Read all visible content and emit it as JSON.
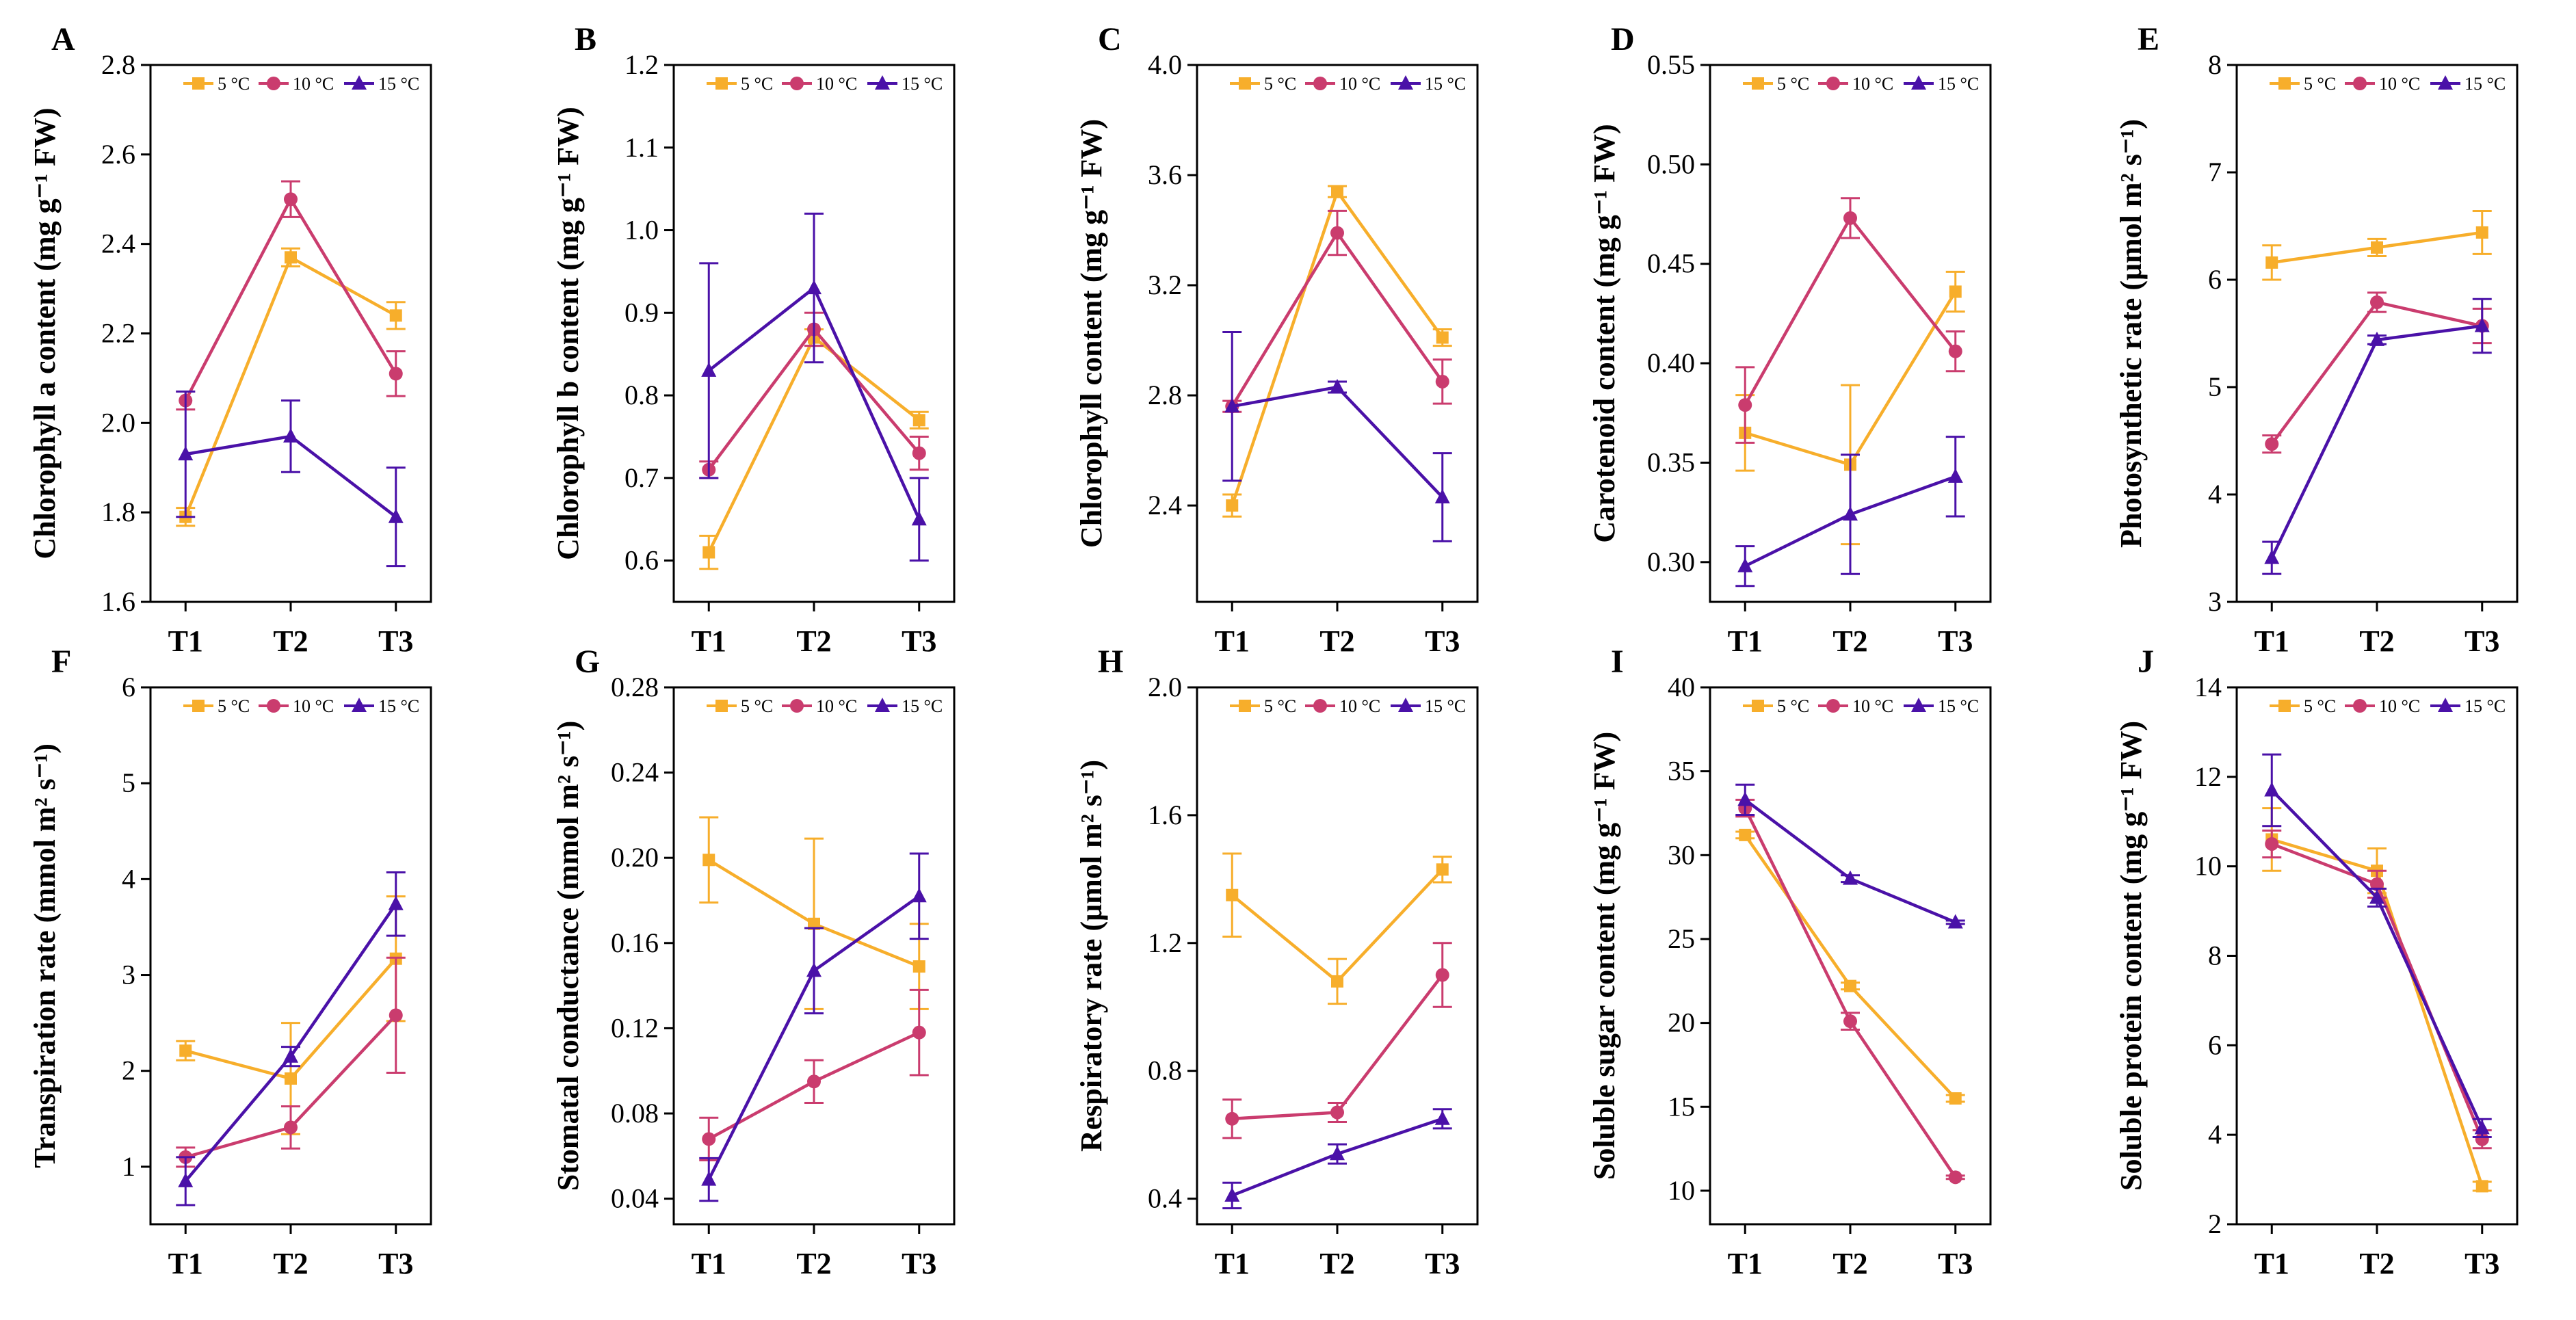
{
  "figure": {
    "colors": {
      "5C": "#F7AE2B",
      "10C": "#CA3C6E",
      "15C": "#4A11A8"
    },
    "legend": [
      "5 °C",
      "10 °C",
      "15 °C"
    ],
    "categories": [
      "T1",
      "T2",
      "T3"
    ]
  },
  "chart_data": [
    {
      "type": "line",
      "panel": "A",
      "ylabel": "Chlorophyll a content (mg g⁻¹ FW)",
      "ylim": [
        1.6,
        2.8
      ],
      "yticks": [
        1.6,
        1.8,
        2.0,
        2.2,
        2.4,
        2.6,
        2.8
      ],
      "ytick_labels": [
        "1.6",
        "1.8",
        "2.0",
        "2.2",
        "2.4",
        "2.6",
        "2.8"
      ],
      "categories": [
        "T1",
        "T2",
        "T3"
      ],
      "series": [
        {
          "name": "5 °C",
          "values": [
            1.79,
            2.37,
            2.24
          ],
          "errors": [
            0.02,
            0.02,
            0.03
          ]
        },
        {
          "name": "10 °C",
          "values": [
            2.05,
            2.5,
            2.11
          ],
          "errors": [
            0.02,
            0.04,
            0.05
          ]
        },
        {
          "name": "15 °C",
          "values": [
            1.93,
            1.97,
            1.79
          ],
          "errors": [
            0.14,
            0.08,
            0.11
          ]
        }
      ]
    },
    {
      "type": "line",
      "panel": "B",
      "ylabel": "Chlorophyll b content (mg g⁻¹ FW)",
      "ylim": [
        0.55,
        1.2
      ],
      "yticks": [
        0.6,
        0.7,
        0.8,
        0.9,
        1.0,
        1.1,
        1.2
      ],
      "ytick_labels": [
        "0.6",
        "0.7",
        "0.8",
        "0.9",
        "1.0",
        "1.1",
        "1.2"
      ],
      "categories": [
        "T1",
        "T2",
        "T3"
      ],
      "series": [
        {
          "name": "5 °C",
          "values": [
            0.61,
            0.87,
            0.77
          ],
          "errors": [
            0.02,
            0.01,
            0.01
          ]
        },
        {
          "name": "10 °C",
          "values": [
            0.71,
            0.88,
            0.73
          ],
          "errors": [
            0.01,
            0.02,
            0.02
          ]
        },
        {
          "name": "15 °C",
          "values": [
            0.83,
            0.93,
            0.65
          ],
          "errors": [
            0.13,
            0.09,
            0.05
          ]
        }
      ]
    },
    {
      "type": "line",
      "panel": "C",
      "ylabel": "Chlorophyll content (mg g⁻¹ FW)",
      "ylim": [
        2.05,
        4.0
      ],
      "yticks": [
        2.4,
        2.8,
        3.2,
        3.6,
        4.0
      ],
      "ytick_labels": [
        "2.4",
        "2.8",
        "3.2",
        "3.6",
        "4.0"
      ],
      "categories": [
        "T1",
        "T2",
        "T3"
      ],
      "series": [
        {
          "name": "5 °C",
          "values": [
            2.4,
            3.54,
            3.01
          ],
          "errors": [
            0.04,
            0.02,
            0.03
          ]
        },
        {
          "name": "10 °C",
          "values": [
            2.76,
            3.39,
            2.85
          ],
          "errors": [
            0.02,
            0.08,
            0.08
          ]
        },
        {
          "name": "15 °C",
          "values": [
            2.76,
            2.83,
            2.43
          ],
          "errors": [
            0.27,
            0.02,
            0.16
          ]
        }
      ]
    },
    {
      "type": "line",
      "panel": "D",
      "ylabel": "Carotenoid content (mg g⁻¹ FW)",
      "ylim": [
        0.28,
        0.55
      ],
      "yticks": [
        0.3,
        0.35,
        0.4,
        0.45,
        0.5,
        0.55
      ],
      "ytick_labels": [
        "0.30",
        "0.35",
        "0.40",
        "0.45",
        "0.50",
        "0.55"
      ],
      "categories": [
        "T1",
        "T2",
        "T3"
      ],
      "series": [
        {
          "name": "5 °C",
          "values": [
            0.365,
            0.349,
            0.436
          ],
          "errors": [
            0.019,
            0.04,
            0.01
          ]
        },
        {
          "name": "10 °C",
          "values": [
            0.379,
            0.473,
            0.406
          ],
          "errors": [
            0.019,
            0.01,
            0.01
          ]
        },
        {
          "name": "15 °C",
          "values": [
            0.298,
            0.324,
            0.343
          ],
          "errors": [
            0.01,
            0.03,
            0.02
          ]
        }
      ]
    },
    {
      "type": "line",
      "panel": "E",
      "ylabel": "Photosynthetic rate (μmol m² s⁻¹)",
      "ylim": [
        3,
        8
      ],
      "yticks": [
        3,
        4,
        5,
        6,
        7,
        8
      ],
      "ytick_labels": [
        "3",
        "4",
        "5",
        "6",
        "7",
        "8"
      ],
      "categories": [
        "T1",
        "T2",
        "T3"
      ],
      "series": [
        {
          "name": "5 °C",
          "values": [
            6.16,
            6.3,
            6.44
          ],
          "errors": [
            0.16,
            0.08,
            0.2
          ]
        },
        {
          "name": "10 °C",
          "values": [
            4.47,
            5.79,
            5.57
          ],
          "errors": [
            0.08,
            0.09,
            0.16
          ]
        },
        {
          "name": "15 °C",
          "values": [
            3.41,
            5.44,
            5.57
          ],
          "errors": [
            0.15,
            0.04,
            0.25
          ]
        }
      ]
    },
    {
      "type": "line",
      "panel": "F",
      "ylabel": "Transpiration rate (mmol m² s⁻¹)",
      "ylim": [
        0.4,
        6
      ],
      "yticks": [
        1,
        2,
        3,
        4,
        5,
        6
      ],
      "ytick_labels": [
        "1",
        "2",
        "3",
        "4",
        "5",
        "6"
      ],
      "categories": [
        "T1",
        "T2",
        "T3"
      ],
      "series": [
        {
          "name": "5 °C",
          "values": [
            2.21,
            1.92,
            3.17
          ],
          "errors": [
            0.1,
            0.58,
            0.65
          ]
        },
        {
          "name": "10 °C",
          "values": [
            1.1,
            1.41,
            2.58
          ],
          "errors": [
            0.1,
            0.22,
            0.6
          ]
        },
        {
          "name": "15 °C",
          "values": [
            0.85,
            2.15,
            3.74
          ],
          "errors": [
            0.25,
            0.1,
            0.33
          ]
        }
      ]
    },
    {
      "type": "line",
      "panel": "G",
      "ylabel": "Stomatal conductance (mmol m² s⁻¹)",
      "ylim": [
        0.028,
        0.28
      ],
      "yticks": [
        0.04,
        0.08,
        0.12,
        0.16,
        0.2,
        0.24,
        0.28
      ],
      "ytick_labels": [
        "0.04",
        "0.08",
        "0.12",
        "0.16",
        "0.20",
        "0.24",
        "0.28"
      ],
      "categories": [
        "T1",
        "T2",
        "T3"
      ],
      "series": [
        {
          "name": "5 °C",
          "values": [
            0.199,
            0.169,
            0.149
          ],
          "errors": [
            0.02,
            0.04,
            0.02
          ]
        },
        {
          "name": "10 °C",
          "values": [
            0.068,
            0.095,
            0.118
          ],
          "errors": [
            0.01,
            0.01,
            0.02
          ]
        },
        {
          "name": "15 °C",
          "values": [
            0.049,
            0.147,
            0.182
          ],
          "errors": [
            0.01,
            0.02,
            0.02
          ]
        }
      ]
    },
    {
      "type": "line",
      "panel": "H",
      "ylabel": "Respiratory rate (μmol m² s⁻¹)",
      "ylim": [
        0.32,
        2.0
      ],
      "yticks": [
        0.4,
        0.8,
        1.2,
        1.6,
        2.0
      ],
      "ytick_labels": [
        "0.4",
        "0.8",
        "1.2",
        "1.6",
        "2.0"
      ],
      "categories": [
        "T1",
        "T2",
        "T3"
      ],
      "series": [
        {
          "name": "5 °C",
          "values": [
            1.35,
            1.08,
            1.43
          ],
          "errors": [
            0.13,
            0.07,
            0.04
          ]
        },
        {
          "name": "10 °C",
          "values": [
            0.65,
            0.67,
            1.1
          ],
          "errors": [
            0.06,
            0.03,
            0.1
          ]
        },
        {
          "name": "15 °C",
          "values": [
            0.41,
            0.54,
            0.65
          ],
          "errors": [
            0.04,
            0.03,
            0.03
          ]
        }
      ]
    },
    {
      "type": "line",
      "panel": "I",
      "ylabel": "Soluble sugar content (mg g⁻¹ FW)",
      "ylim": [
        8,
        40
      ],
      "yticks": [
        10,
        15,
        20,
        25,
        30,
        35,
        40
      ],
      "ytick_labels": [
        "10",
        "15",
        "20",
        "25",
        "30",
        "35",
        "40"
      ],
      "categories": [
        "T1",
        "T2",
        "T3"
      ],
      "series": [
        {
          "name": "5 °C",
          "values": [
            31.2,
            22.2,
            15.5
          ],
          "errors": [
            0.2,
            0.2,
            0.2
          ]
        },
        {
          "name": "10 °C",
          "values": [
            32.8,
            20.1,
            10.8
          ],
          "errors": [
            0.5,
            0.5,
            0.1
          ]
        },
        {
          "name": "15 °C",
          "values": [
            33.3,
            28.6,
            26.0
          ],
          "errors": [
            0.9,
            0.2,
            0.1
          ]
        }
      ]
    },
    {
      "type": "line",
      "panel": "J",
      "ylabel": "Soluble protein content (mg g⁻¹ FW)",
      "ylim": [
        2,
        14
      ],
      "yticks": [
        2,
        4,
        6,
        8,
        10,
        12,
        14
      ],
      "ytick_labels": [
        "2",
        "4",
        "6",
        "8",
        "10",
        "12",
        "14"
      ],
      "categories": [
        "T1",
        "T2",
        "T3"
      ],
      "series": [
        {
          "name": "5 °C",
          "values": [
            10.6,
            9.9,
            2.85
          ],
          "errors": [
            0.7,
            0.5,
            0.1
          ]
        },
        {
          "name": "10 °C",
          "values": [
            10.5,
            9.6,
            3.9
          ],
          "errors": [
            0.3,
            0.3,
            0.2
          ]
        },
        {
          "name": "15 °C",
          "values": [
            11.7,
            9.3,
            4.15
          ],
          "errors": [
            0.8,
            0.2,
            0.2
          ]
        }
      ]
    }
  ]
}
